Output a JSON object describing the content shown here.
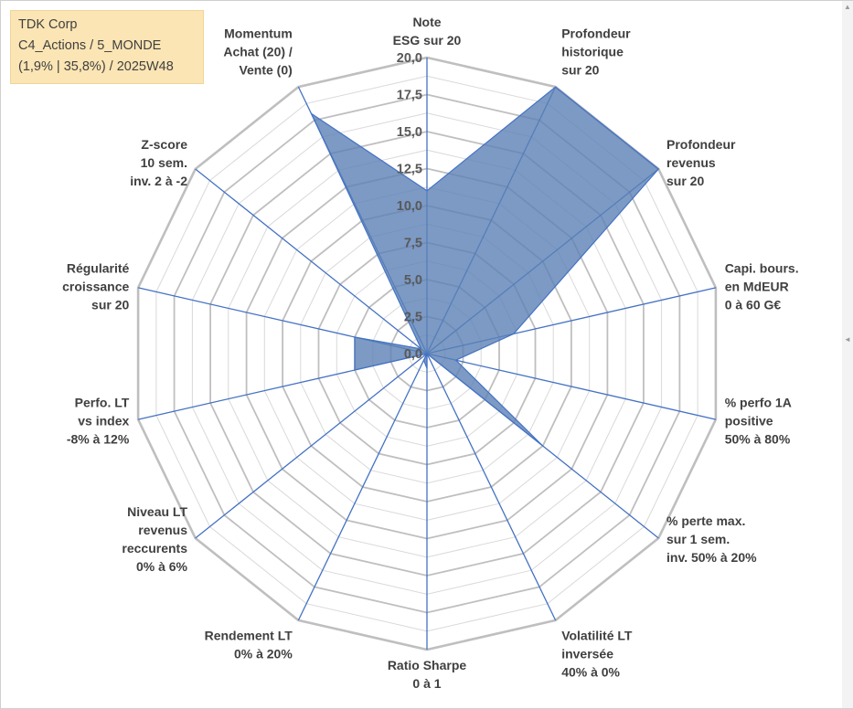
{
  "header": {
    "company": "TDK Corp",
    "category": "C4_Actions / 5_MONDE",
    "stats": "(1,9% | 35,8%) / 2025W48"
  },
  "colors": {
    "fill": "#5b81b5",
    "fill_opacity": 0.8,
    "outline": "#4472c4",
    "grid_major": "#bfbfbf",
    "grid_minor": "#d9d9d9",
    "spoke": "#4472c4",
    "background_box": "#fbe5b4"
  },
  "chart_data": {
    "type": "radar",
    "rmin": 0,
    "rmax": 20,
    "tick_step": 2.5,
    "tick_labels": [
      "0,0",
      "2,5",
      "5,0",
      "7,5",
      "10,0",
      "12,5",
      "15,0",
      "17,5",
      "20,0"
    ],
    "axes": [
      {
        "label": [
          "Note",
          "ESG sur 20"
        ],
        "value": 11.0
      },
      {
        "label": [
          "Profondeur",
          "historique",
          "sur 20"
        ],
        "value": 20.0
      },
      {
        "label": [
          "Profondeur",
          "revenus",
          "sur 20"
        ],
        "value": 20.0
      },
      {
        "label": [
          "Capi. bours.",
          "en MdEUR",
          "0 à 60 G€"
        ],
        "value": 6.0
      },
      {
        "label": [
          "% perfo 1A",
          "positive",
          "50% à 80%"
        ],
        "value": 2.0
      },
      {
        "label": [
          "% perte max.",
          "sur 1 sem.",
          "inv. 50% à 20%"
        ],
        "value": 10.0
      },
      {
        "label": [
          "Volatilité LT",
          "inversée",
          "40% à 0%"
        ],
        "value": 0.0
      },
      {
        "label": [
          "Ratio Sharpe",
          "0 à 1"
        ],
        "value": 1.0
      },
      {
        "label": [
          "Rendement LT",
          "0% à 20%"
        ],
        "value": 0.5
      },
      {
        "label": [
          "Niveau LT",
          "revenus",
          "reccurents",
          "0% à 6%"
        ],
        "value": 0.0
      },
      {
        "label": [
          "Perfo. LT",
          "vs index",
          "-8% à 12%"
        ],
        "value": 5.0
      },
      {
        "label": [
          "Régularité",
          "croissance",
          "sur 20"
        ],
        "value": 5.0
      },
      {
        "label": [
          "Z-score",
          "10 sem.",
          "inv. 2 à -2"
        ],
        "value": 0.5
      },
      {
        "label": [
          "Momentum",
          "Achat (20) /",
          "Vente (0)"
        ],
        "value": 18.0
      }
    ]
  }
}
